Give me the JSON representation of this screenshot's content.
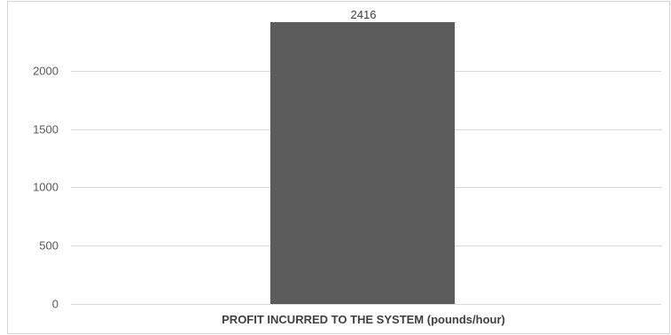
{
  "chart_data": {
    "type": "bar",
    "categories": [
      "PROFIT INCURRED TO THE SYSTEM (pounds/hour)"
    ],
    "series": [
      {
        "values": [
          2416
        ]
      }
    ],
    "data_labels": [
      "2416"
    ],
    "yticks": [
      0,
      500,
      1000,
      1500,
      2000
    ],
    "ylim": [
      0,
      2416
    ],
    "grid": true,
    "legend": "none",
    "colors": {
      "bar": "#5c5c5c",
      "grid": "#d9d9d9",
      "text": "#595959"
    }
  }
}
